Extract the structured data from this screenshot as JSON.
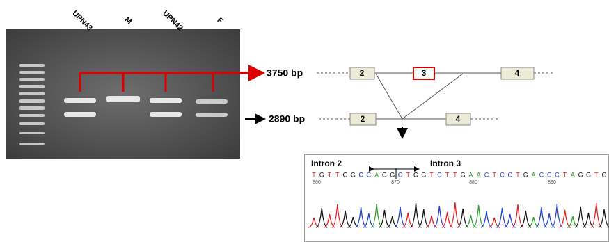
{
  "gel": {
    "lanes": [
      "UPN43",
      "M",
      "UPN42",
      "F"
    ]
  },
  "bands": {
    "upper": "3750 bp",
    "lower": "2890 bp"
  },
  "exons": {
    "top": [
      "2",
      "3",
      "4"
    ],
    "bottom": [
      "2",
      "4"
    ]
  },
  "chromatogram": {
    "intron_left": "Intron 2",
    "intron_right": "Intron 3",
    "sequence": [
      "T",
      "G",
      "T",
      "T",
      "G",
      "G",
      "C",
      "C",
      "A",
      "G",
      "G",
      "C",
      "T",
      "G",
      "G",
      "T",
      "C",
      "T",
      "T",
      "G",
      "A",
      "A",
      "C",
      "T",
      "C",
      "C",
      "T",
      "G",
      "A",
      "C",
      "C",
      "C",
      "T",
      "A",
      "G",
      "G",
      "T",
      "G"
    ],
    "positions": [
      "860",
      "870",
      "880",
      "890"
    ]
  }
}
